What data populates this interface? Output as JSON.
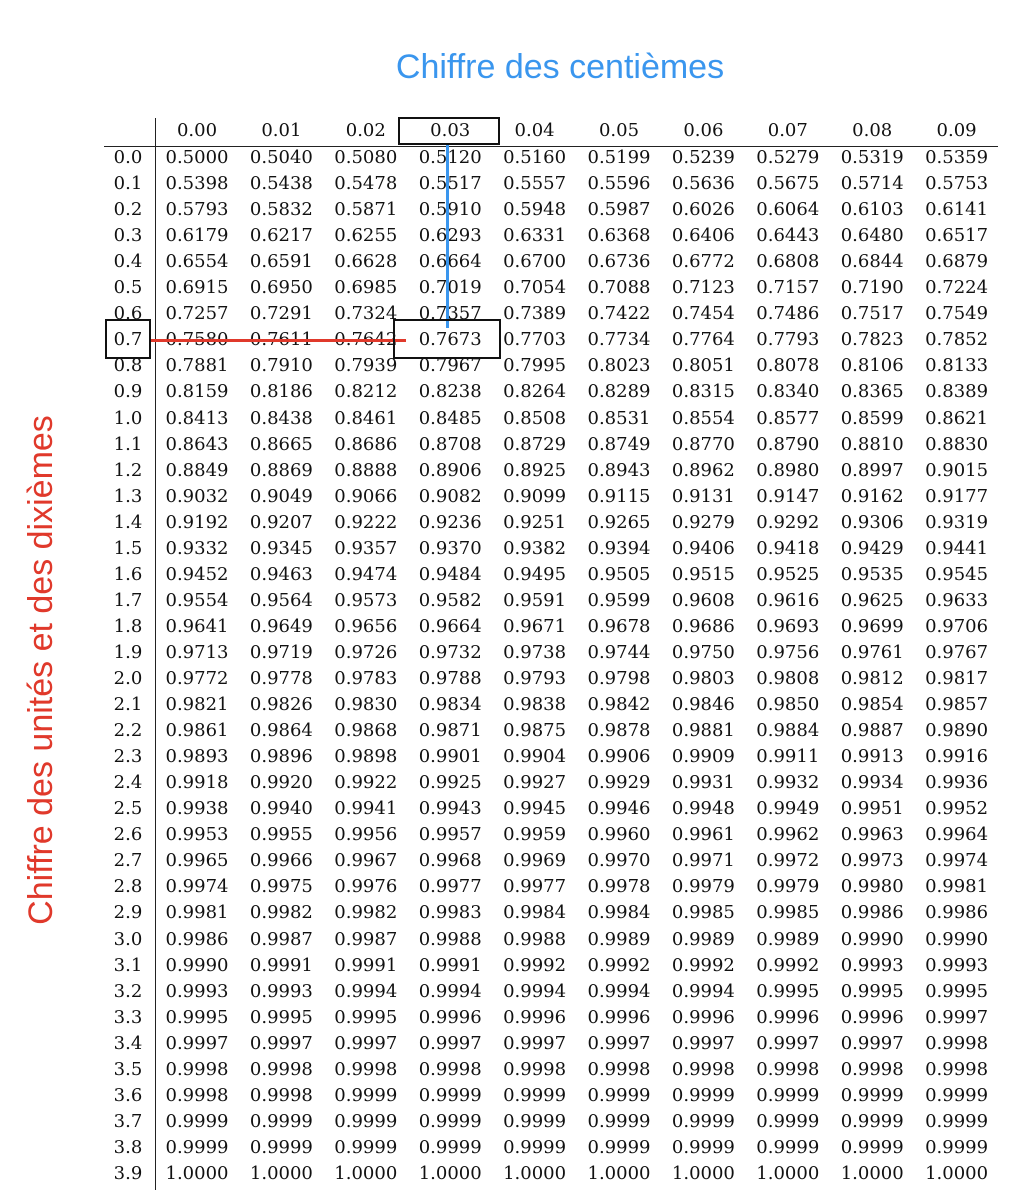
{
  "headings": {
    "columns_label": "Chiffre des centièmes",
    "rows_label": "Chiffre des unités et des dixièmes"
  },
  "colors": {
    "columns_label": "#3a96ee",
    "rows_label": "#e0392b"
  },
  "highlight": {
    "row": "0.7",
    "column": "0.03",
    "value": "0.7673"
  },
  "columns": [
    "0.00",
    "0.01",
    "0.02",
    "0.03",
    "0.04",
    "0.05",
    "0.06",
    "0.07",
    "0.08",
    "0.09"
  ],
  "rows": [
    {
      "z": "0.0",
      "v": [
        "0.5000",
        "0.5040",
        "0.5080",
        "0.5120",
        "0.5160",
        "0.5199",
        "0.5239",
        "0.5279",
        "0.5319",
        "0.5359"
      ]
    },
    {
      "z": "0.1",
      "v": [
        "0.5398",
        "0.5438",
        "0.5478",
        "0.5517",
        "0.5557",
        "0.5596",
        "0.5636",
        "0.5675",
        "0.5714",
        "0.5753"
      ]
    },
    {
      "z": "0.2",
      "v": [
        "0.5793",
        "0.5832",
        "0.5871",
        "0.5910",
        "0.5948",
        "0.5987",
        "0.6026",
        "0.6064",
        "0.6103",
        "0.6141"
      ]
    },
    {
      "z": "0.3",
      "v": [
        "0.6179",
        "0.6217",
        "0.6255",
        "0.6293",
        "0.6331",
        "0.6368",
        "0.6406",
        "0.6443",
        "0.6480",
        "0.6517"
      ]
    },
    {
      "z": "0.4",
      "v": [
        "0.6554",
        "0.6591",
        "0.6628",
        "0.6664",
        "0.6700",
        "0.6736",
        "0.6772",
        "0.6808",
        "0.6844",
        "0.6879"
      ]
    },
    {
      "z": "0.5",
      "v": [
        "0.6915",
        "0.6950",
        "0.6985",
        "0.7019",
        "0.7054",
        "0.7088",
        "0.7123",
        "0.7157",
        "0.7190",
        "0.7224"
      ]
    },
    {
      "z": "0.6",
      "v": [
        "0.7257",
        "0.7291",
        "0.7324",
        "0.7357",
        "0.7389",
        "0.7422",
        "0.7454",
        "0.7486",
        "0.7517",
        "0.7549"
      ]
    },
    {
      "z": "0.7",
      "v": [
        "0.7580",
        "0.7611",
        "0.7642",
        "0.7673",
        "0.7703",
        "0.7734",
        "0.7764",
        "0.7793",
        "0.7823",
        "0.7852"
      ]
    },
    {
      "z": "0.8",
      "v": [
        "0.7881",
        "0.7910",
        "0.7939",
        "0.7967",
        "0.7995",
        "0.8023",
        "0.8051",
        "0.8078",
        "0.8106",
        "0.8133"
      ]
    },
    {
      "z": "0.9",
      "v": [
        "0.8159",
        "0.8186",
        "0.8212",
        "0.8238",
        "0.8264",
        "0.8289",
        "0.8315",
        "0.8340",
        "0.8365",
        "0.8389"
      ]
    },
    {
      "z": "1.0",
      "v": [
        "0.8413",
        "0.8438",
        "0.8461",
        "0.8485",
        "0.8508",
        "0.8531",
        "0.8554",
        "0.8577",
        "0.8599",
        "0.8621"
      ]
    },
    {
      "z": "1.1",
      "v": [
        "0.8643",
        "0.8665",
        "0.8686",
        "0.8708",
        "0.8729",
        "0.8749",
        "0.8770",
        "0.8790",
        "0.8810",
        "0.8830"
      ]
    },
    {
      "z": "1.2",
      "v": [
        "0.8849",
        "0.8869",
        "0.8888",
        "0.8906",
        "0.8925",
        "0.8943",
        "0.8962",
        "0.8980",
        "0.8997",
        "0.9015"
      ]
    },
    {
      "z": "1.3",
      "v": [
        "0.9032",
        "0.9049",
        "0.9066",
        "0.9082",
        "0.9099",
        "0.9115",
        "0.9131",
        "0.9147",
        "0.9162",
        "0.9177"
      ]
    },
    {
      "z": "1.4",
      "v": [
        "0.9192",
        "0.9207",
        "0.9222",
        "0.9236",
        "0.9251",
        "0.9265",
        "0.9279",
        "0.9292",
        "0.9306",
        "0.9319"
      ]
    },
    {
      "z": "1.5",
      "v": [
        "0.9332",
        "0.9345",
        "0.9357",
        "0.9370",
        "0.9382",
        "0.9394",
        "0.9406",
        "0.9418",
        "0.9429",
        "0.9441"
      ]
    },
    {
      "z": "1.6",
      "v": [
        "0.9452",
        "0.9463",
        "0.9474",
        "0.9484",
        "0.9495",
        "0.9505",
        "0.9515",
        "0.9525",
        "0.9535",
        "0.9545"
      ]
    },
    {
      "z": "1.7",
      "v": [
        "0.9554",
        "0.9564",
        "0.9573",
        "0.9582",
        "0.9591",
        "0.9599",
        "0.9608",
        "0.9616",
        "0.9625",
        "0.9633"
      ]
    },
    {
      "z": "1.8",
      "v": [
        "0.9641",
        "0.9649",
        "0.9656",
        "0.9664",
        "0.9671",
        "0.9678",
        "0.9686",
        "0.9693",
        "0.9699",
        "0.9706"
      ]
    },
    {
      "z": "1.9",
      "v": [
        "0.9713",
        "0.9719",
        "0.9726",
        "0.9732",
        "0.9738",
        "0.9744",
        "0.9750",
        "0.9756",
        "0.9761",
        "0.9767"
      ]
    },
    {
      "z": "2.0",
      "v": [
        "0.9772",
        "0.9778",
        "0.9783",
        "0.9788",
        "0.9793",
        "0.9798",
        "0.9803",
        "0.9808",
        "0.9812",
        "0.9817"
      ]
    },
    {
      "z": "2.1",
      "v": [
        "0.9821",
        "0.9826",
        "0.9830",
        "0.9834",
        "0.9838",
        "0.9842",
        "0.9846",
        "0.9850",
        "0.9854",
        "0.9857"
      ]
    },
    {
      "z": "2.2",
      "v": [
        "0.9861",
        "0.9864",
        "0.9868",
        "0.9871",
        "0.9875",
        "0.9878",
        "0.9881",
        "0.9884",
        "0.9887",
        "0.9890"
      ]
    },
    {
      "z": "2.3",
      "v": [
        "0.9893",
        "0.9896",
        "0.9898",
        "0.9901",
        "0.9904",
        "0.9906",
        "0.9909",
        "0.9911",
        "0.9913",
        "0.9916"
      ]
    },
    {
      "z": "2.4",
      "v": [
        "0.9918",
        "0.9920",
        "0.9922",
        "0.9925",
        "0.9927",
        "0.9929",
        "0.9931",
        "0.9932",
        "0.9934",
        "0.9936"
      ]
    },
    {
      "z": "2.5",
      "v": [
        "0.9938",
        "0.9940",
        "0.9941",
        "0.9943",
        "0.9945",
        "0.9946",
        "0.9948",
        "0.9949",
        "0.9951",
        "0.9952"
      ]
    },
    {
      "z": "2.6",
      "v": [
        "0.9953",
        "0.9955",
        "0.9956",
        "0.9957",
        "0.9959",
        "0.9960",
        "0.9961",
        "0.9962",
        "0.9963",
        "0.9964"
      ]
    },
    {
      "z": "2.7",
      "v": [
        "0.9965",
        "0.9966",
        "0.9967",
        "0.9968",
        "0.9969",
        "0.9970",
        "0.9971",
        "0.9972",
        "0.9973",
        "0.9974"
      ]
    },
    {
      "z": "2.8",
      "v": [
        "0.9974",
        "0.9975",
        "0.9976",
        "0.9977",
        "0.9977",
        "0.9978",
        "0.9979",
        "0.9979",
        "0.9980",
        "0.9981"
      ]
    },
    {
      "z": "2.9",
      "v": [
        "0.9981",
        "0.9982",
        "0.9982",
        "0.9983",
        "0.9984",
        "0.9984",
        "0.9985",
        "0.9985",
        "0.9986",
        "0.9986"
      ]
    },
    {
      "z": "3.0",
      "v": [
        "0.9986",
        "0.9987",
        "0.9987",
        "0.9988",
        "0.9988",
        "0.9989",
        "0.9989",
        "0.9989",
        "0.9990",
        "0.9990"
      ]
    },
    {
      "z": "3.1",
      "v": [
        "0.9990",
        "0.9991",
        "0.9991",
        "0.9991",
        "0.9992",
        "0.9992",
        "0.9992",
        "0.9992",
        "0.9993",
        "0.9993"
      ]
    },
    {
      "z": "3.2",
      "v": [
        "0.9993",
        "0.9993",
        "0.9994",
        "0.9994",
        "0.9994",
        "0.9994",
        "0.9994",
        "0.9995",
        "0.9995",
        "0.9995"
      ]
    },
    {
      "z": "3.3",
      "v": [
        "0.9995",
        "0.9995",
        "0.9995",
        "0.9996",
        "0.9996",
        "0.9996",
        "0.9996",
        "0.9996",
        "0.9996",
        "0.9997"
      ]
    },
    {
      "z": "3.4",
      "v": [
        "0.9997",
        "0.9997",
        "0.9997",
        "0.9997",
        "0.9997",
        "0.9997",
        "0.9997",
        "0.9997",
        "0.9997",
        "0.9998"
      ]
    },
    {
      "z": "3.5",
      "v": [
        "0.9998",
        "0.9998",
        "0.9998",
        "0.9998",
        "0.9998",
        "0.9998",
        "0.9998",
        "0.9998",
        "0.9998",
        "0.9998"
      ]
    },
    {
      "z": "3.6",
      "v": [
        "0.9998",
        "0.9998",
        "0.9999",
        "0.9999",
        "0.9999",
        "0.9999",
        "0.9999",
        "0.9999",
        "0.9999",
        "0.9999"
      ]
    },
    {
      "z": "3.7",
      "v": [
        "0.9999",
        "0.9999",
        "0.9999",
        "0.9999",
        "0.9999",
        "0.9999",
        "0.9999",
        "0.9999",
        "0.9999",
        "0.9999"
      ]
    },
    {
      "z": "3.8",
      "v": [
        "0.9999",
        "0.9999",
        "0.9999",
        "0.9999",
        "0.9999",
        "0.9999",
        "0.9999",
        "0.9999",
        "0.9999",
        "0.9999"
      ]
    },
    {
      "z": "3.9",
      "v": [
        "1.0000",
        "1.0000",
        "1.0000",
        "1.0000",
        "1.0000",
        "1.0000",
        "1.0000",
        "1.0000",
        "1.0000",
        "1.0000"
      ]
    }
  ]
}
